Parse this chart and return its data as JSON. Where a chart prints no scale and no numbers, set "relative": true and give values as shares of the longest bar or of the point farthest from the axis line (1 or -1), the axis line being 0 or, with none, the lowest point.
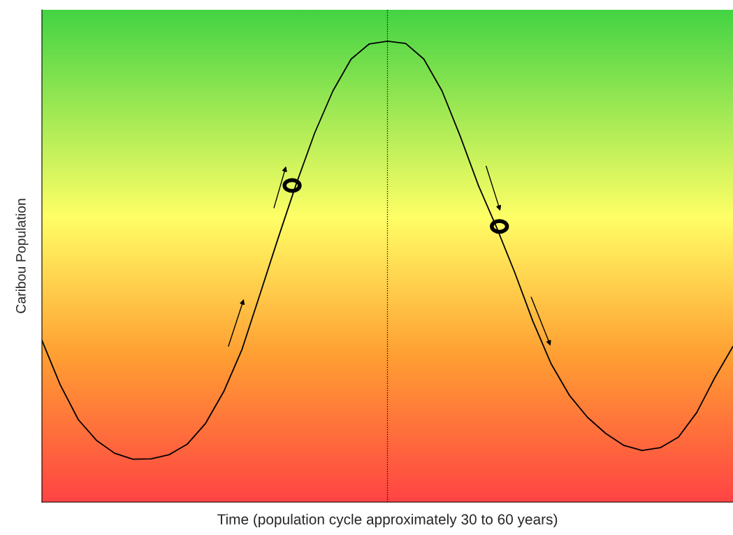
{
  "chart_data": {
    "type": "line",
    "relative": true,
    "xlabel": "Time (population cycle approximately 30 to 60 years)",
    "ylabel": "Caribou Population",
    "categories": [
      null,
      null,
      null,
      null,
      null,
      null,
      null,
      null,
      null,
      null,
      null,
      null,
      null,
      null,
      null,
      null,
      null,
      null,
      null,
      null,
      null,
      null,
      null,
      null,
      null,
      null,
      null,
      null,
      null,
      null,
      null,
      null,
      null,
      null,
      null,
      null,
      null,
      null,
      null
    ],
    "series": [
      {
        "color": "#000000",
        "values": [
          0.351,
          0.255,
          0.179,
          0.134,
          0.106,
          0.093,
          0.094,
          0.103,
          0.126,
          0.171,
          0.24,
          0.331,
          0.452,
          0.574,
          0.692,
          0.801,
          0.892,
          0.961,
          0.994,
          1,
          0.995,
          0.961,
          0.892,
          0.794,
          0.687,
          0.596,
          0.498,
          0.392,
          0.3,
          0.232,
          0.184,
          0.149,
          0.123,
          0.112,
          0.118,
          0.141,
          0.194,
          0.27,
          0.338
        ]
      }
    ],
    "legend": false,
    "marker": "none",
    "line_style": "solid"
  }
}
